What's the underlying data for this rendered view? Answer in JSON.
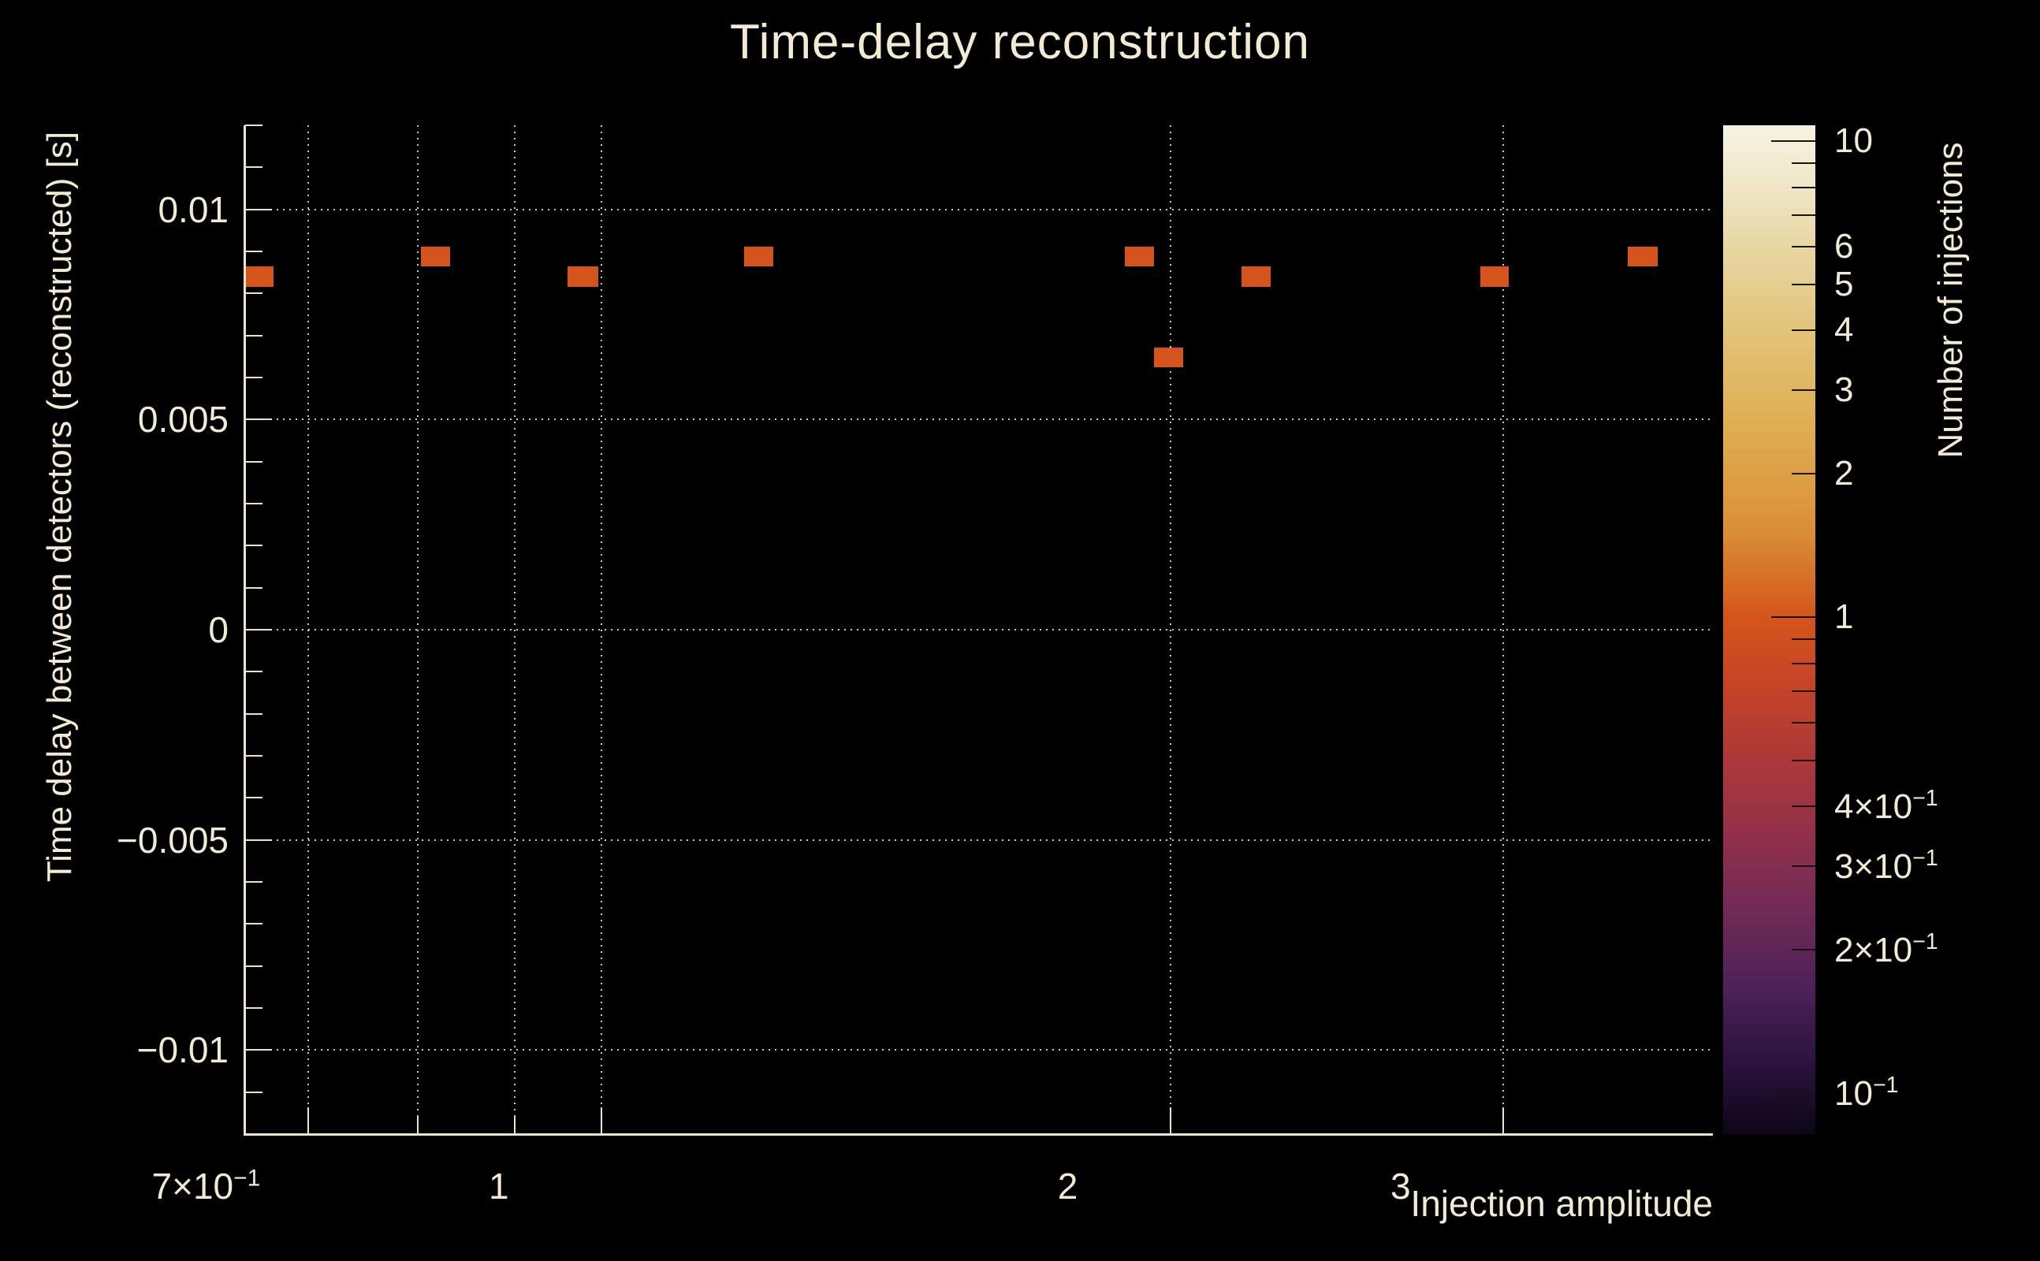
{
  "title": "Time-delay reconstruction",
  "colors": {
    "background": "#000000",
    "text": "#f2ead2",
    "axis": "#ece3c8",
    "grid": "rgba(242,234,210,0.85)",
    "bin_fill": "#d4541b"
  },
  "chart_data": {
    "type": "heatmap",
    "title": "Time-delay reconstruction",
    "xlabel": "Injection amplitude",
    "ylabel": "Time delay between detectors (reconstructed) [s]",
    "zlabel": "Number of injections",
    "x_scale": "log",
    "xlim": [
      0.648,
      3.874
    ],
    "y_scale": "linear",
    "ylim": [
      -0.012,
      0.012
    ],
    "z_scale": "log",
    "zlim": [
      0.082,
      10.8
    ],
    "grid": "dotted",
    "legend_position": "right-colorbar",
    "x_ticks": [
      {
        "v": 0.7,
        "t": "7×10",
        "e": "−1",
        "labeled": true
      },
      {
        "v": 0.8,
        "t": "",
        "e": "",
        "labeled": false
      },
      {
        "v": 0.9,
        "t": "",
        "e": "",
        "labeled": false
      },
      {
        "v": 1,
        "t": "1",
        "e": "",
        "labeled": true
      },
      {
        "v": 2,
        "t": "2",
        "e": "",
        "labeled": true
      },
      {
        "v": 3,
        "t": "3",
        "e": "",
        "labeled": true
      }
    ],
    "y_major_ticks": [
      {
        "v": 0.01,
        "t": "0.01"
      },
      {
        "v": 0.005,
        "t": "0.005"
      },
      {
        "v": 0,
        "t": "0"
      },
      {
        "v": -0.005,
        "t": "−0.005"
      },
      {
        "v": -0.01,
        "t": "−0.01"
      }
    ],
    "y_minor_step": 0.001,
    "z_ticks": [
      {
        "v": 10,
        "t": "10",
        "e": "",
        "labeled": true,
        "major": true
      },
      {
        "v": 9,
        "t": "",
        "e": "",
        "labeled": false,
        "major": false
      },
      {
        "v": 8,
        "t": "",
        "e": "",
        "labeled": false,
        "major": false
      },
      {
        "v": 7,
        "t": "",
        "e": "",
        "labeled": false,
        "major": false
      },
      {
        "v": 6,
        "t": "6",
        "e": "",
        "labeled": true,
        "major": false
      },
      {
        "v": 5,
        "t": "5",
        "e": "",
        "labeled": true,
        "major": false
      },
      {
        "v": 4,
        "t": "4",
        "e": "",
        "labeled": true,
        "major": false
      },
      {
        "v": 3,
        "t": "3",
        "e": "",
        "labeled": true,
        "major": false
      },
      {
        "v": 2,
        "t": "2",
        "e": "",
        "labeled": true,
        "major": false
      },
      {
        "v": 1,
        "t": "1",
        "e": "",
        "labeled": true,
        "major": true
      },
      {
        "v": 0.9,
        "t": "",
        "e": "",
        "labeled": false,
        "major": false
      },
      {
        "v": 0.8,
        "t": "",
        "e": "",
        "labeled": false,
        "major": false
      },
      {
        "v": 0.7,
        "t": "",
        "e": "",
        "labeled": false,
        "major": false
      },
      {
        "v": 0.6,
        "t": "",
        "e": "",
        "labeled": false,
        "major": false
      },
      {
        "v": 0.5,
        "t": "",
        "e": "",
        "labeled": false,
        "major": false
      },
      {
        "v": 0.4,
        "t": "4×10",
        "e": "−1",
        "labeled": true,
        "major": false
      },
      {
        "v": 0.3,
        "t": "3×10",
        "e": "−1",
        "labeled": true,
        "major": false
      },
      {
        "v": 0.2,
        "t": "2×10",
        "e": "−1",
        "labeled": true,
        "major": false
      },
      {
        "v": 0.1,
        "t": "10",
        "e": "−1",
        "labeled": true,
        "major": true
      }
    ],
    "points": [
      {
        "x": 0.659,
        "y": 0.0084,
        "count": 1,
        "x_edges": [
          0.648,
          0.671
        ],
        "y_edges": [
          0.00816,
          0.00864
        ]
      },
      {
        "x": 0.817,
        "y": 0.00888,
        "count": 1,
        "x_edges": [
          0.803,
          0.832
        ],
        "y_edges": [
          0.00864,
          0.00912
        ]
      },
      {
        "x": 0.978,
        "y": 0.0084,
        "count": 1,
        "x_edges": [
          0.96,
          0.996
        ],
        "y_edges": [
          0.00816,
          0.00864
        ]
      },
      {
        "x": 1.211,
        "y": 0.00888,
        "count": 1,
        "x_edges": [
          1.19,
          1.233
        ],
        "y_edges": [
          0.00864,
          0.00912
        ]
      },
      {
        "x": 1.926,
        "y": 0.00888,
        "count": 1,
        "x_edges": [
          1.892,
          1.961
        ],
        "y_edges": [
          0.00864,
          0.00912
        ]
      },
      {
        "x": 1.996,
        "y": 0.00648,
        "count": 1,
        "x_edges": [
          1.961,
          2.032
        ],
        "y_edges": [
          0.00624,
          0.00672
        ]
      },
      {
        "x": 2.221,
        "y": 0.0084,
        "count": 1,
        "x_edges": [
          2.182,
          2.261
        ],
        "y_edges": [
          0.00816,
          0.00864
        ]
      },
      {
        "x": 2.969,
        "y": 0.0084,
        "count": 1,
        "x_edges": [
          2.917,
          3.022
        ],
        "y_edges": [
          0.00816,
          0.00864
        ]
      },
      {
        "x": 3.557,
        "y": 0.00888,
        "count": 1,
        "x_edges": [
          3.494,
          3.621
        ],
        "y_edges": [
          0.00864,
          0.00912
        ]
      }
    ],
    "palette_stops": [
      {
        "frac": 0.0,
        "color": "#f6f3e4"
      },
      {
        "frac": 0.05,
        "color": "#f1e9cd"
      },
      {
        "frac": 0.12,
        "color": "#e8d7a3"
      },
      {
        "frac": 0.2,
        "color": "#e2c47b"
      },
      {
        "frac": 0.3,
        "color": "#dfad52"
      },
      {
        "frac": 0.4,
        "color": "#da9038"
      },
      {
        "frac": 0.4875,
        "color": "#d4551b"
      },
      {
        "frac": 0.55,
        "color": "#c64526"
      },
      {
        "frac": 0.62,
        "color": "#b03937"
      },
      {
        "frac": 0.7,
        "color": "#93304b"
      },
      {
        "frac": 0.78,
        "color": "#702a56"
      },
      {
        "frac": 0.86,
        "color": "#4a2158"
      },
      {
        "frac": 0.93,
        "color": "#2b123d"
      },
      {
        "frac": 1.0,
        "color": "#0e0618"
      }
    ]
  }
}
